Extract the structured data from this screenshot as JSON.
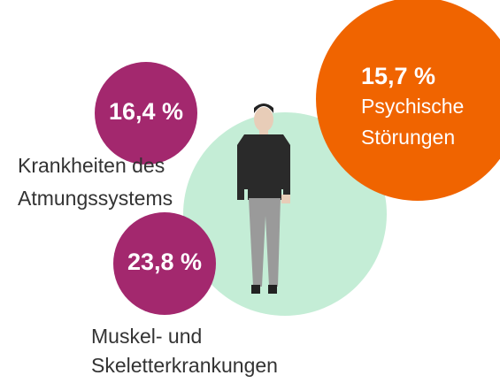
{
  "items": [
    {
      "value": "16,4 %",
      "label": [
        "Krankheiten des",
        "Atmungssystems"
      ]
    },
    {
      "value": "23,8 %",
      "label": [
        "Muskel- und",
        "Skeletterkrankungen"
      ]
    },
    {
      "value": "15,7 %",
      "label": [
        "Psychische",
        "Störungen"
      ]
    }
  ]
}
